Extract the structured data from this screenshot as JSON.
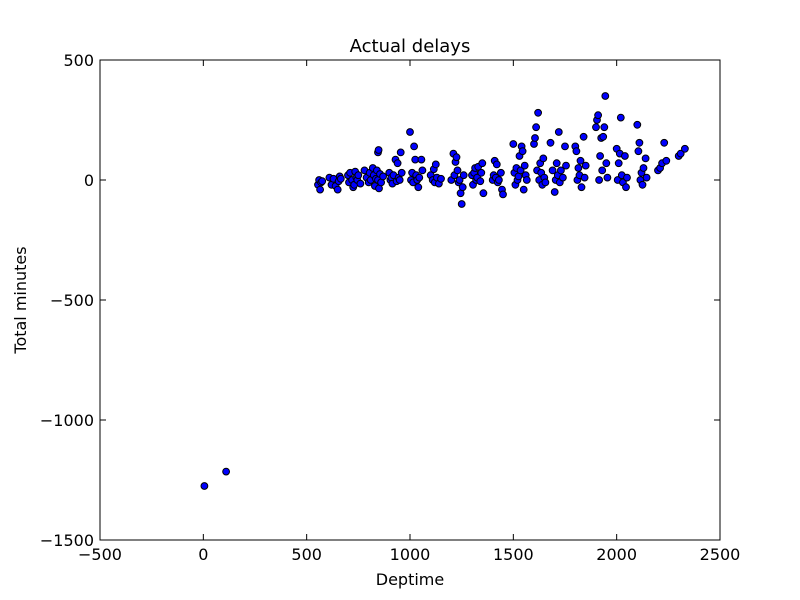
{
  "chart_data": {
    "type": "scatter",
    "title": "Actual delays",
    "xlabel": "Deptime",
    "ylabel": "Total minutes",
    "xlim": [
      -500,
      2500
    ],
    "ylim": [
      -1500,
      500
    ],
    "xticks": [
      -500,
      0,
      500,
      1000,
      1500,
      2000,
      2500
    ],
    "yticks": [
      -1500,
      -1000,
      -500,
      0,
      500
    ],
    "xtick_labels": [
      "−500",
      "0",
      "500",
      "1000",
      "1500",
      "2000",
      "2500"
    ],
    "ytick_labels": [
      "−1500",
      "−1000",
      "−500",
      "0",
      "500"
    ],
    "grid": false,
    "legend": "none",
    "marker_color": "#0000ff",
    "marker_edge_color": "#000000",
    "series": [
      {
        "points": [
          [
            5,
            -1275
          ],
          [
            110,
            -1215
          ],
          [
            555,
            -20
          ],
          [
            560,
            0
          ],
          [
            565,
            -40
          ],
          [
            570,
            -10
          ],
          [
            575,
            -5
          ],
          [
            610,
            10
          ],
          [
            620,
            -20
          ],
          [
            630,
            5
          ],
          [
            640,
            -25
          ],
          [
            650,
            -40
          ],
          [
            655,
            -5
          ],
          [
            660,
            15
          ],
          [
            665,
            5
          ],
          [
            700,
            20
          ],
          [
            705,
            -10
          ],
          [
            710,
            30
          ],
          [
            720,
            0
          ],
          [
            725,
            -30
          ],
          [
            730,
            -20
          ],
          [
            735,
            35
          ],
          [
            740,
            10
          ],
          [
            745,
            0
          ],
          [
            750,
            20
          ],
          [
            760,
            -15
          ],
          [
            780,
            40
          ],
          [
            790,
            10
          ],
          [
            800,
            -10
          ],
          [
            805,
            30
          ],
          [
            810,
            0
          ],
          [
            820,
            50
          ],
          [
            825,
            20
          ],
          [
            830,
            -25
          ],
          [
            835,
            5
          ],
          [
            840,
            40
          ],
          [
            845,
            0
          ],
          [
            850,
            -35
          ],
          [
            845,
            115
          ],
          [
            848,
            125
          ],
          [
            855,
            25
          ],
          [
            860,
            -10
          ],
          [
            870,
            15
          ],
          [
            900,
            30
          ],
          [
            905,
            0
          ],
          [
            910,
            10
          ],
          [
            915,
            -15
          ],
          [
            920,
            20
          ],
          [
            930,
            85
          ],
          [
            935,
            -5
          ],
          [
            940,
            70
          ],
          [
            945,
            10
          ],
          [
            950,
            0
          ],
          [
            955,
            115
          ],
          [
            960,
            30
          ],
          [
            1000,
            200
          ],
          [
            1005,
            0
          ],
          [
            1010,
            30
          ],
          [
            1015,
            -10
          ],
          [
            1020,
            140
          ],
          [
            1025,
            85
          ],
          [
            1030,
            20
          ],
          [
            1035,
            0
          ],
          [
            1040,
            -30
          ],
          [
            1045,
            10
          ],
          [
            1055,
            85
          ],
          [
            1060,
            40
          ],
          [
            1100,
            20
          ],
          [
            1110,
            0
          ],
          [
            1115,
            45
          ],
          [
            1120,
            -10
          ],
          [
            1125,
            65
          ],
          [
            1130,
            10
          ],
          [
            1140,
            -15
          ],
          [
            1150,
            5
          ],
          [
            1200,
            0
          ],
          [
            1210,
            110
          ],
          [
            1215,
            20
          ],
          [
            1220,
            75
          ],
          [
            1225,
            95
          ],
          [
            1230,
            40
          ],
          [
            1235,
            -10
          ],
          [
            1240,
            0
          ],
          [
            1245,
            -55
          ],
          [
            1250,
            -100
          ],
          [
            1255,
            -30
          ],
          [
            1260,
            20
          ],
          [
            1300,
            20
          ],
          [
            1305,
            -20
          ],
          [
            1310,
            30
          ],
          [
            1315,
            50
          ],
          [
            1320,
            0
          ],
          [
            1325,
            10
          ],
          [
            1330,
            55
          ],
          [
            1340,
            -5
          ],
          [
            1345,
            30
          ],
          [
            1350,
            70
          ],
          [
            1355,
            -55
          ],
          [
            1400,
            0
          ],
          [
            1405,
            20
          ],
          [
            1410,
            80
          ],
          [
            1415,
            10
          ],
          [
            1420,
            65
          ],
          [
            1425,
            -10
          ],
          [
            1430,
            0
          ],
          [
            1440,
            30
          ],
          [
            1445,
            -40
          ],
          [
            1450,
            -60
          ],
          [
            1500,
            150
          ],
          [
            1505,
            30
          ],
          [
            1510,
            -20
          ],
          [
            1515,
            50
          ],
          [
            1520,
            0
          ],
          [
            1525,
            15
          ],
          [
            1530,
            100
          ],
          [
            1535,
            40
          ],
          [
            1540,
            140
          ],
          [
            1545,
            120
          ],
          [
            1550,
            -40
          ],
          [
            1555,
            60
          ],
          [
            1560,
            20
          ],
          [
            1565,
            0
          ],
          [
            1600,
            150
          ],
          [
            1605,
            175
          ],
          [
            1610,
            220
          ],
          [
            1615,
            40
          ],
          [
            1620,
            280
          ],
          [
            1625,
            0
          ],
          [
            1630,
            70
          ],
          [
            1635,
            30
          ],
          [
            1640,
            -20
          ],
          [
            1645,
            90
          ],
          [
            1650,
            10
          ],
          [
            1655,
            -10
          ],
          [
            1680,
            155
          ],
          [
            1690,
            40
          ],
          [
            1700,
            -50
          ],
          [
            1705,
            0
          ],
          [
            1710,
            70
          ],
          [
            1715,
            20
          ],
          [
            1720,
            200
          ],
          [
            1725,
            -10
          ],
          [
            1730,
            40
          ],
          [
            1740,
            10
          ],
          [
            1750,
            140
          ],
          [
            1755,
            60
          ],
          [
            1800,
            140
          ],
          [
            1805,
            120
          ],
          [
            1810,
            0
          ],
          [
            1815,
            50
          ],
          [
            1820,
            20
          ],
          [
            1825,
            80
          ],
          [
            1830,
            -30
          ],
          [
            1840,
            180
          ],
          [
            1845,
            10
          ],
          [
            1850,
            60
          ],
          [
            1900,
            220
          ],
          [
            1905,
            250
          ],
          [
            1910,
            270
          ],
          [
            1915,
            0
          ],
          [
            1920,
            100
          ],
          [
            1925,
            175
          ],
          [
            1930,
            40
          ],
          [
            1935,
            180
          ],
          [
            1940,
            220
          ],
          [
            1945,
            350
          ],
          [
            1950,
            70
          ],
          [
            1955,
            10
          ],
          [
            2000,
            130
          ],
          [
            2005,
            0
          ],
          [
            2010,
            70
          ],
          [
            2015,
            110
          ],
          [
            2020,
            260
          ],
          [
            2025,
            20
          ],
          [
            2030,
            -10
          ],
          [
            2040,
            100
          ],
          [
            2045,
            -30
          ],
          [
            2050,
            10
          ],
          [
            2100,
            230
          ],
          [
            2105,
            120
          ],
          [
            2110,
            155
          ],
          [
            2115,
            0
          ],
          [
            2120,
            30
          ],
          [
            2125,
            -20
          ],
          [
            2130,
            50
          ],
          [
            2140,
            90
          ],
          [
            2145,
            10
          ],
          [
            2200,
            40
          ],
          [
            2210,
            50
          ],
          [
            2220,
            70
          ],
          [
            2230,
            155
          ],
          [
            2240,
            80
          ],
          [
            2300,
            100
          ],
          [
            2310,
            110
          ],
          [
            2330,
            130
          ]
        ]
      }
    ]
  }
}
